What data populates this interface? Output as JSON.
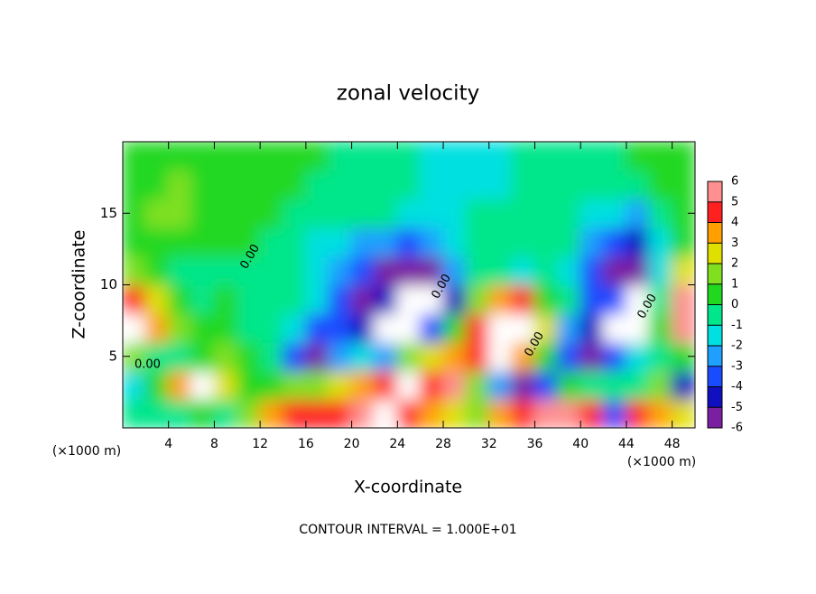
{
  "chart_data": {
    "type": "heatmap",
    "title": "zonal velocity",
    "x_label": "X-coordinate",
    "y_label": "Z-coordinate",
    "x_unit": "(×1000 m)",
    "footer": "CONTOUR INTERVAL = 1.000E+01",
    "contour_label": "0.00",
    "xlim": [
      0,
      50
    ],
    "ylim": [
      0,
      20
    ],
    "xticks": [
      4,
      8,
      12,
      16,
      20,
      24,
      28,
      32,
      36,
      40,
      44,
      48
    ],
    "yticks": [
      5,
      10,
      15
    ],
    "x": [
      1,
      3,
      5,
      7,
      9,
      11,
      13,
      15,
      17,
      19,
      21,
      23,
      25,
      27,
      29,
      31,
      33,
      35,
      37,
      39,
      41,
      43,
      45,
      47,
      49
    ],
    "z": [
      1,
      3,
      5,
      7,
      9,
      11,
      13,
      15,
      17,
      19
    ],
    "values": [
      [
        0,
        -0.5,
        0,
        0.5,
        0,
        2,
        4,
        5,
        5,
        5,
        6,
        8,
        5,
        4,
        3,
        2,
        4,
        5,
        6,
        6,
        5,
        -3,
        5,
        4,
        3
      ],
      [
        -1,
        1,
        4,
        8,
        3,
        1,
        1,
        2,
        2,
        3,
        4,
        5,
        8,
        5,
        6,
        2,
        -2,
        -5,
        -3,
        1,
        0,
        0,
        0,
        2,
        -4
      ],
      [
        2,
        0,
        0,
        1,
        2,
        1,
        -0.5,
        -3,
        -5,
        -2,
        -1,
        -2,
        2,
        3,
        4,
        5,
        8,
        4,
        1,
        -3,
        -5,
        -3,
        -1,
        0,
        1
      ],
      [
        8,
        4,
        2,
        1,
        0.5,
        0,
        -0.5,
        -1.5,
        -3,
        -3,
        -4,
        8,
        8,
        -3,
        1,
        5,
        8,
        8,
        3,
        -2,
        -4,
        8,
        8,
        1,
        6
      ],
      [
        5,
        3,
        1,
        0,
        0.5,
        0,
        0,
        -0.5,
        -1,
        -3,
        -5,
        -4,
        8,
        8,
        -4,
        2,
        4,
        5,
        1,
        -0.5,
        -3,
        -3,
        8,
        0,
        6
      ],
      [
        2,
        1,
        0,
        -0.5,
        0,
        0,
        0,
        -0.5,
        -1,
        -2,
        -3,
        -5,
        -5,
        -5,
        -2,
        0,
        -0.5,
        -1,
        0,
        -1,
        -3,
        -5,
        -5,
        -1,
        3
      ],
      [
        0.5,
        0.5,
        0.5,
        0.5,
        0.5,
        0.5,
        0,
        -0.5,
        -1,
        -1.5,
        -2,
        -2.5,
        -3,
        -2,
        -1,
        -0.5,
        0,
        0,
        0,
        -0.5,
        -2,
        -3,
        -4,
        -1,
        0.5
      ],
      [
        1,
        1.5,
        1.5,
        1,
        0.5,
        0.5,
        0.5,
        0,
        0,
        0,
        -0.5,
        -0.5,
        -1,
        -1,
        -1,
        -0.5,
        -0.5,
        0,
        0,
        0,
        -1,
        -1.5,
        -2,
        0,
        0.5
      ],
      [
        1,
        1,
        1.5,
        1,
        0.5,
        0.5,
        0.5,
        0.5,
        0,
        0,
        0,
        0,
        -0.5,
        -1,
        -1.5,
        -1.5,
        -1,
        -0.5,
        -0.5,
        0,
        0,
        -0.5,
        -0.5,
        0.5,
        0.5
      ],
      [
        1,
        1,
        1,
        1,
        0.5,
        0.5,
        0.5,
        0.5,
        0.5,
        0,
        0,
        0,
        -0.5,
        -1,
        -1.5,
        -1.5,
        -1,
        -0.5,
        0,
        0,
        0,
        0,
        0.5,
        0.5,
        0.5
      ]
    ],
    "levels": [
      -6,
      -5,
      -4,
      -3,
      -2,
      -1,
      0,
      1,
      2,
      3,
      4,
      5,
      6
    ],
    "colors": [
      "#7a1fa2",
      "#1010c0",
      "#1a4cff",
      "#1f9fff",
      "#00e0e0",
      "#00e68a",
      "#20d820",
      "#80e020",
      "#e0e000",
      "#ffa000",
      "#ff2020",
      "#ff9090"
    ],
    "out_of_range_color": "#ffffff"
  }
}
